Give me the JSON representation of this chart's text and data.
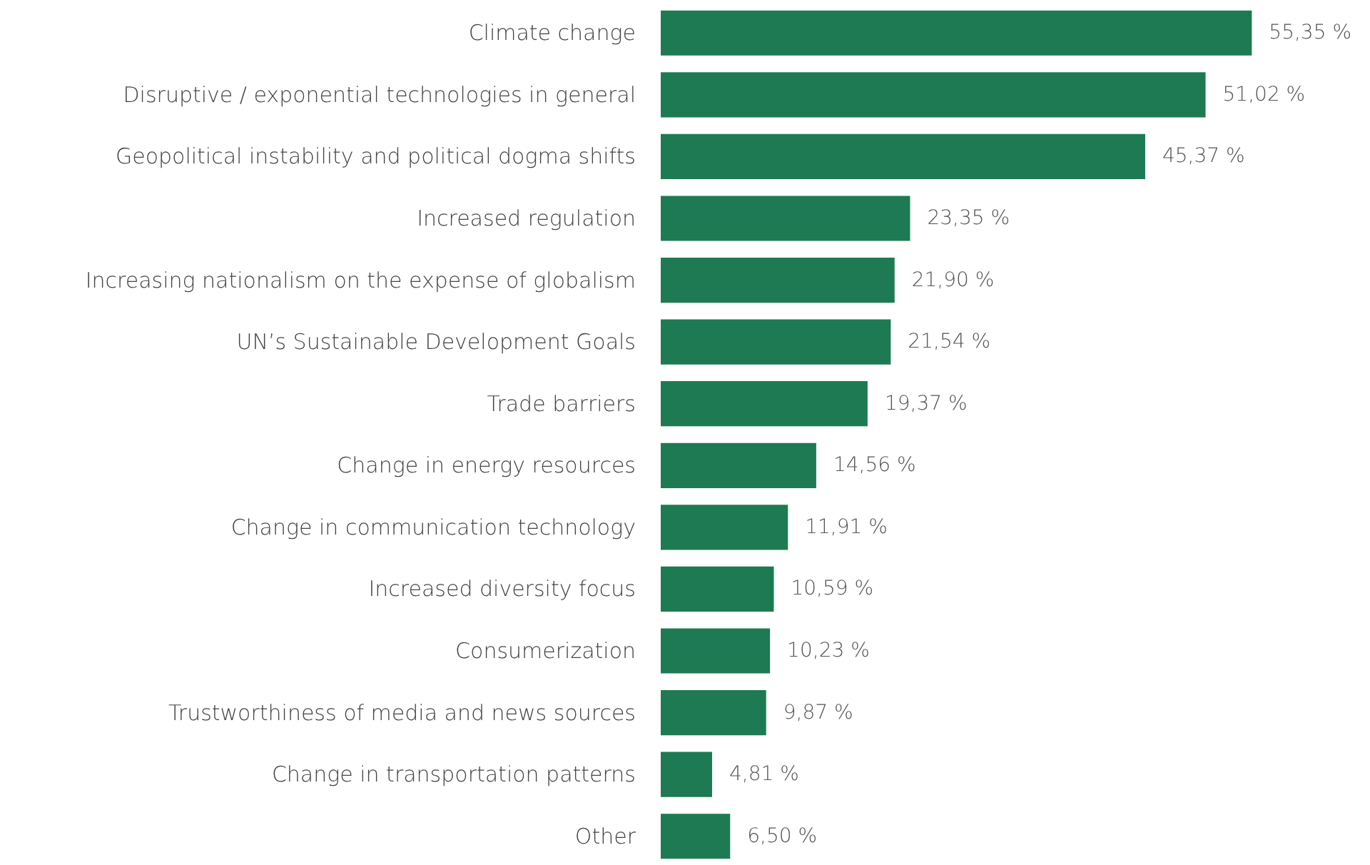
{
  "chart_data": {
    "type": "bar",
    "orientation": "horizontal",
    "categories": [
      "Climate change",
      "Disruptive / exponential technologies in general",
      "Geopolitical instability and political dogma shifts",
      "Increased regulation",
      "Increasing nationalism on the expense of globalism",
      "UN’s Sustainable Development Goals",
      "Trade barriers",
      "Change in energy resources",
      "Change in communication technology",
      "Increased diversity focus",
      "Consumerization",
      "Trustworthiness of media and news sources",
      "Change in transportation patterns",
      "Other"
    ],
    "values": [
      55.35,
      51.02,
      45.37,
      23.35,
      21.9,
      21.54,
      19.37,
      14.56,
      11.91,
      10.59,
      10.23,
      9.87,
      4.81,
      6.5
    ],
    "value_labels": [
      "55,35 %",
      "51,02 %",
      "45,37 %",
      "23,35 %",
      "21,90 %",
      "21,54 %",
      "19,37 %",
      "14,56 %",
      "11,91 %",
      "10,59 %",
      "10,23 %",
      "9,87 %",
      "4,81 %",
      "6,50 %"
    ],
    "color": "#1e7a52"
  }
}
